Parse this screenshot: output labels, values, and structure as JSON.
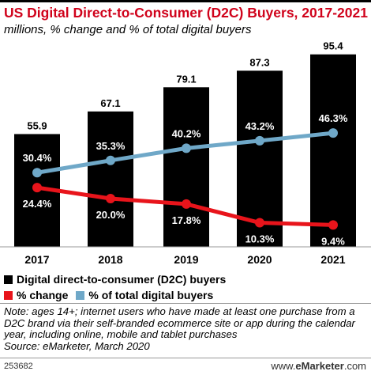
{
  "title": "US Digital Direct-to-Consumer (D2C) Buyers, 2017-2021",
  "subtitle": "millions, % change and % of total digital buyers",
  "colors": {
    "title": "#d0021b",
    "bars": "#000000",
    "change_line": "#e8141b",
    "share_line": "#6fa8c8"
  },
  "chart_data": {
    "type": "bar",
    "categories": [
      "2017",
      "2018",
      "2019",
      "2020",
      "2021"
    ],
    "series": [
      {
        "name": "Digital direct-to-consumer (D2C) buyers",
        "type": "bar",
        "values": [
          55.9,
          67.1,
          79.1,
          87.3,
          95.4
        ],
        "labels": [
          "55.9",
          "67.1",
          "79.1",
          "87.3",
          "95.4"
        ]
      },
      {
        "name": "% change",
        "type": "line",
        "values": [
          24.4,
          20.0,
          17.8,
          10.3,
          9.4
        ],
        "labels": [
          "24.4%",
          "20.0%",
          "17.8%",
          "10.3%",
          "9.4%"
        ]
      },
      {
        "name": "% of total digital buyers",
        "type": "line",
        "values": [
          30.4,
          35.3,
          40.2,
          43.2,
          46.3
        ],
        "labels": [
          "30.4%",
          "35.3%",
          "40.2%",
          "43.2%",
          "46.3%"
        ]
      }
    ],
    "ylim": [
      0,
      100
    ],
    "grid": false,
    "legend_position": "bottom-left"
  },
  "legend": {
    "items": [
      {
        "label": "Digital direct-to-consumer (D2C) buyers",
        "color": "#000000"
      },
      {
        "label": "% change",
        "color": "#e8141b"
      },
      {
        "label": "% of total digital buyers",
        "color": "#6fa8c8"
      }
    ]
  },
  "note": {
    "text": "Note: ages 14+; internet users who have made at least one purchase from a D2C brand via their self-branded ecommerce site or app during the calendar year, including online, mobile and tablet purchases",
    "source": "Source: eMarketer, March 2020"
  },
  "footer": {
    "chart_id": "253682",
    "brand_prefix": "www.",
    "brand_name": "eMarketer",
    "brand_suffix": ".com"
  }
}
